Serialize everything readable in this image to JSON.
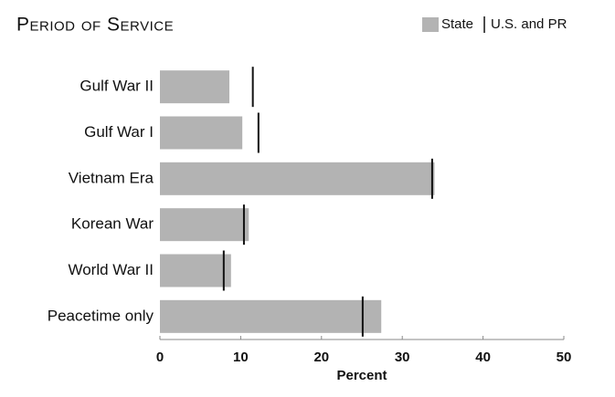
{
  "chart_data": {
    "type": "bar",
    "orientation": "horizontal",
    "title": "Period of Service",
    "categories": [
      "Gulf War II",
      "Gulf War I",
      "Vietnam Era",
      "Korean War",
      "World War II",
      "Peacetime only"
    ],
    "series": [
      {
        "name": "State",
        "color": "#b3b3b3",
        "mark": "bar",
        "values": [
          8.6,
          10.2,
          34.0,
          11.0,
          8.8,
          27.4
        ]
      },
      {
        "name": "U.S. and PR",
        "color": "#111111",
        "mark": "tick",
        "values": [
          11.5,
          12.2,
          33.7,
          10.4,
          7.9,
          25.1
        ]
      }
    ],
    "xlabel": "Percent",
    "xlim": [
      0,
      50
    ],
    "xticks": [
      0,
      10,
      20,
      30,
      40,
      50
    ],
    "grid": false,
    "legend": "top-right"
  }
}
